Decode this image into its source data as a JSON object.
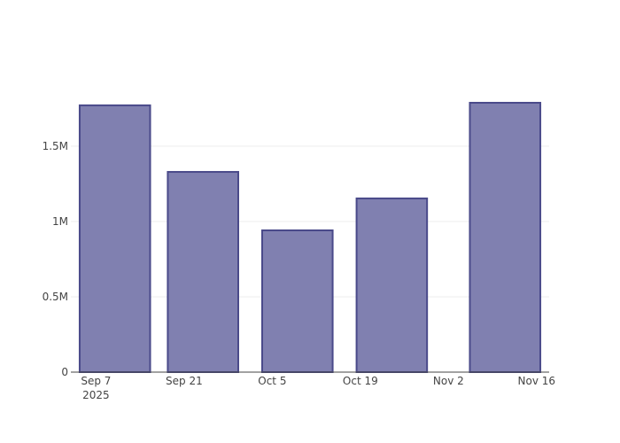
{
  "chart_data": {
    "type": "bar",
    "x": [
      "2025-09-10",
      "2025-09-24",
      "2025-10-09",
      "2025-10-24",
      "2025-11-11"
    ],
    "values": [
      1771000,
      1329000,
      941000,
      1153000,
      1788000
    ],
    "color": "#8080b0",
    "line_color": "#4a4a8a",
    "xlim": [
      "2025-09-03",
      "2025-11-18"
    ],
    "xticks": [
      {
        "value": "2025-09-07",
        "label": "Sep 7\n2025"
      },
      {
        "value": "2025-09-21",
        "label": "Sep 21"
      },
      {
        "value": "2025-10-05",
        "label": "Oct 5"
      },
      {
        "value": "2025-10-19",
        "label": "Oct 19"
      },
      {
        "value": "2025-11-02",
        "label": "Nov 2"
      },
      {
        "value": "2025-11-16",
        "label": "Nov 16"
      }
    ],
    "ylim": [
      0,
      1882000
    ],
    "yticks": [
      0,
      {
        "value": 500000,
        "label": "0.5M"
      },
      {
        "value": 1000000,
        "label": "1M"
      },
      {
        "value": 1500000,
        "label": "1.5M"
      }
    ],
    "grid": true
  }
}
